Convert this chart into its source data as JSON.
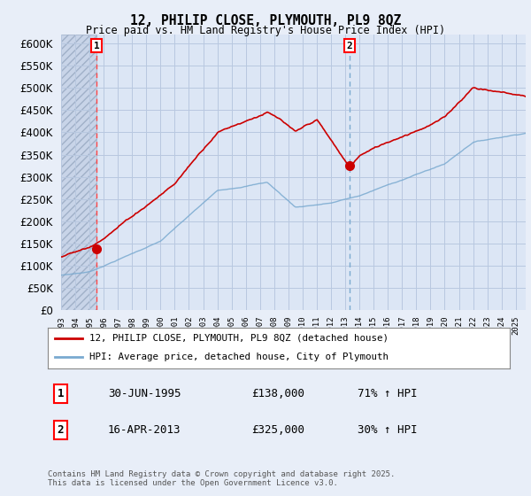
{
  "title": "12, PHILIP CLOSE, PLYMOUTH, PL9 8QZ",
  "subtitle": "Price paid vs. HM Land Registry's House Price Index (HPI)",
  "ylim": [
    0,
    620000
  ],
  "yticks": [
    0,
    50000,
    100000,
    150000,
    200000,
    250000,
    300000,
    350000,
    400000,
    450000,
    500000,
    550000,
    600000
  ],
  "ytick_labels": [
    "£0",
    "£50K",
    "£100K",
    "£150K",
    "£200K",
    "£250K",
    "£300K",
    "£350K",
    "£400K",
    "£450K",
    "£500K",
    "£550K",
    "£600K"
  ],
  "hpi_color": "#7aaad0",
  "price_color": "#cc0000",
  "sale1_date": 1995.49,
  "sale1_price": 138000,
  "sale2_date": 2013.29,
  "sale2_price": 325000,
  "legend_label1": "12, PHILIP CLOSE, PLYMOUTH, PL9 8QZ (detached house)",
  "legend_label2": "HPI: Average price, detached house, City of Plymouth",
  "note1_num": "1",
  "note1_date": "30-JUN-1995",
  "note1_price": "£138,000",
  "note1_hpi": "71% ↑ HPI",
  "note2_num": "2",
  "note2_date": "16-APR-2013",
  "note2_price": "£325,000",
  "note2_hpi": "30% ↑ HPI",
  "copyright": "Contains HM Land Registry data © Crown copyright and database right 2025.\nThis data is licensed under the Open Government Licence v3.0.",
  "background_color": "#e8eef8",
  "plot_bg_color": "#dce6f5",
  "grid_color": "#b8c8e0",
  "xlim_start": 1993.0,
  "xlim_end": 2025.7
}
